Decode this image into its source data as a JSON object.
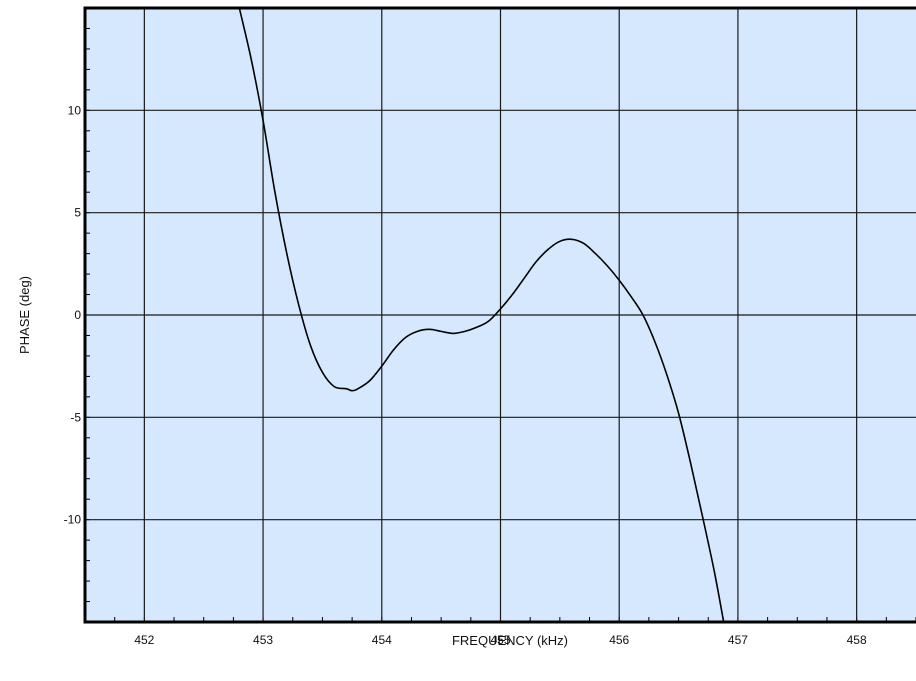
{
  "colors": {
    "plot_background": "#d5e8fd",
    "grid": "#1a1a1a",
    "curve": "#000000",
    "axis_frame": "#000000"
  },
  "chart_data": {
    "type": "line",
    "xlabel": "FREQUENCY (kHz)",
    "ylabel": "PHASE (deg)",
    "xlim": [
      451.5,
      458.5
    ],
    "ylim": [
      -15,
      15
    ],
    "grid": true,
    "x_ticks": [
      452,
      453,
      454,
      455,
      456,
      457,
      458
    ],
    "x_tick_labels": [
      "452",
      "453",
      "454",
      "455",
      "456",
      "457",
      "458"
    ],
    "y_ticks": [
      10,
      5,
      0,
      -5,
      -10
    ],
    "y_tick_labels": [
      "10",
      "5",
      "0",
      "-5",
      "-10"
    ],
    "y_minor_step": 1,
    "x_minor_step": 0.25,
    "series": [
      {
        "x": [
          452.8,
          452.9,
          453.0,
          453.1,
          453.2,
          453.3,
          453.4,
          453.5,
          453.6,
          453.7,
          453.75,
          453.8,
          453.9,
          454.0,
          454.1,
          454.2,
          454.3,
          454.4,
          454.5,
          454.6,
          454.7,
          454.8,
          454.9,
          455.0,
          455.1,
          455.2,
          455.3,
          455.4,
          455.5,
          455.6,
          455.7,
          455.8,
          455.9,
          456.0,
          456.1,
          456.2,
          456.3,
          456.4,
          456.5,
          456.6,
          456.7,
          456.8,
          456.88
        ],
        "y": [
          15,
          12.5,
          9.5,
          6.0,
          3.0,
          0.5,
          -1.5,
          -2.8,
          -3.5,
          -3.6,
          -3.7,
          -3.6,
          -3.2,
          -2.5,
          -1.7,
          -1.1,
          -0.8,
          -0.7,
          -0.8,
          -0.9,
          -0.8,
          -0.6,
          -0.3,
          0.3,
          1.0,
          1.8,
          2.6,
          3.2,
          3.6,
          3.7,
          3.5,
          3.0,
          2.4,
          1.7,
          0.9,
          0.0,
          -1.3,
          -2.9,
          -4.8,
          -7.2,
          -9.8,
          -12.5,
          -15
        ]
      }
    ]
  }
}
